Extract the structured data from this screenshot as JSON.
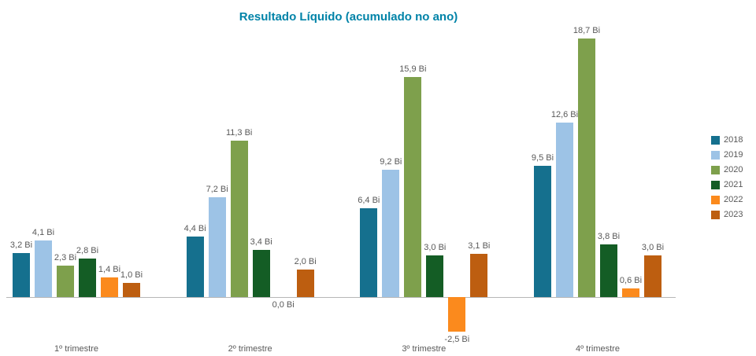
{
  "chart_data": {
    "type": "bar",
    "title": "Resultado Líquido (acumulado no ano)",
    "title_color": "#0083a8",
    "xlabel": "",
    "ylabel": "",
    "categories": [
      "1º trimestre",
      "2º trimestre",
      "3º trimestre",
      "4º trimestre"
    ],
    "series": [
      {
        "name": "2018",
        "color": "#15708e",
        "values": [
          3.2,
          4.4,
          6.4,
          9.5
        ],
        "labels": [
          "3,2 Bi",
          "4,4 Bi",
          "6,4 Bi",
          "9,5 Bi"
        ]
      },
      {
        "name": "2019",
        "color": "#9dc3e6",
        "values": [
          4.1,
          7.2,
          9.2,
          12.6
        ],
        "labels": [
          "4,1 Bi",
          "7,2 Bi",
          "9,2 Bi",
          "12,6 Bi"
        ]
      },
      {
        "name": "2020",
        "color": "#7ea04c",
        "values": [
          2.3,
          11.3,
          15.9,
          18.7
        ],
        "labels": [
          "2,3 Bi",
          "11,3 Bi",
          "15,9 Bi",
          "18,7 Bi"
        ]
      },
      {
        "name": "2021",
        "color": "#145d25",
        "values": [
          2.8,
          3.4,
          3.0,
          3.8
        ],
        "labels": [
          "2,8 Bi",
          "3,4 Bi",
          "3,0 Bi",
          "3,8 Bi"
        ]
      },
      {
        "name": "2022",
        "color": "#fb8a1d",
        "values": [
          1.4,
          0.0,
          -2.5,
          0.6
        ],
        "labels": [
          "1,4 Bi",
          "0,0 Bi",
          "-2,5 Bi",
          "0,6 Bi"
        ]
      },
      {
        "name": "2023",
        "color": "#bd5e10",
        "values": [
          1.0,
          2.0,
          3.1,
          3.0
        ],
        "labels": [
          "1,0 Bi",
          "2,0 Bi",
          "3,1 Bi",
          "3,0 Bi"
        ]
      }
    ],
    "ylim": [
      -2.5,
      18.7
    ],
    "grid": false,
    "legend_position": "right",
    "value_label_color": "#595959",
    "axis_line_color": "#b7b7b7"
  }
}
